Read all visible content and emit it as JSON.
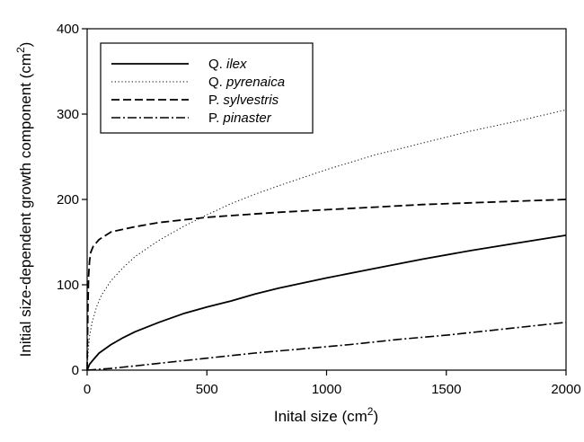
{
  "chart_data": {
    "type": "line",
    "title": "",
    "xlabel": {
      "text": "Inital size (cm",
      "sup": "2",
      "close": ")"
    },
    "ylabel": {
      "text": "Initial size-dependent growth component (cm",
      "sup": "2",
      "close": ")"
    },
    "xlim": [
      0,
      2000
    ],
    "ylim": [
      0,
      400
    ],
    "xticks": [
      0,
      500,
      1000,
      1500,
      2000
    ],
    "yticks": [
      0,
      100,
      200,
      300,
      400
    ],
    "xtick_labels": [
      "0",
      "500",
      "1000",
      "1500",
      "2000"
    ],
    "ytick_labels": [
      "0",
      "100",
      "200",
      "300",
      "400"
    ],
    "grid": false,
    "legend_position": "top-left",
    "series": [
      {
        "id": "qilex",
        "prefix": "Q.",
        "species": "ilex",
        "dash": "solid",
        "color": "#000000",
        "points": [
          [
            0,
            0
          ],
          [
            10,
            7
          ],
          [
            25,
            12
          ],
          [
            50,
            20
          ],
          [
            100,
            30
          ],
          [
            150,
            38
          ],
          [
            200,
            45
          ],
          [
            300,
            56
          ],
          [
            400,
            66
          ],
          [
            500,
            74
          ],
          [
            600,
            81
          ],
          [
            700,
            89
          ],
          [
            800,
            96
          ],
          [
            1000,
            108
          ],
          [
            1200,
            119
          ],
          [
            1400,
            130
          ],
          [
            1600,
            140
          ],
          [
            1800,
            149
          ],
          [
            2000,
            158
          ]
        ]
      },
      {
        "id": "qpyrenaica",
        "prefix": "Q.",
        "species": "pyrenaica",
        "dash": "dotted",
        "color": "#000000",
        "points": [
          [
            0,
            0
          ],
          [
            5,
            25
          ],
          [
            10,
            40
          ],
          [
            20,
            55
          ],
          [
            40,
            75
          ],
          [
            60,
            88
          ],
          [
            100,
            105
          ],
          [
            150,
            120
          ],
          [
            200,
            133
          ],
          [
            300,
            152
          ],
          [
            400,
            168
          ],
          [
            500,
            182
          ],
          [
            600,
            195
          ],
          [
            700,
            206
          ],
          [
            800,
            216
          ],
          [
            1000,
            235
          ],
          [
            1200,
            252
          ],
          [
            1400,
            266
          ],
          [
            1600,
            280
          ],
          [
            1800,
            292
          ],
          [
            2000,
            305
          ]
        ]
      },
      {
        "id": "psylvestris",
        "prefix": "P.",
        "species": "sylvestris",
        "dash": "dashed",
        "color": "#000000",
        "points": [
          [
            0,
            0
          ],
          [
            3,
            70
          ],
          [
            6,
            110
          ],
          [
            10,
            128
          ],
          [
            15,
            138
          ],
          [
            25,
            145
          ],
          [
            50,
            153
          ],
          [
            100,
            162
          ],
          [
            200,
            168
          ],
          [
            300,
            173
          ],
          [
            400,
            176
          ],
          [
            500,
            179
          ],
          [
            600,
            181
          ],
          [
            800,
            185
          ],
          [
            1000,
            188
          ],
          [
            1200,
            191
          ],
          [
            1400,
            194
          ],
          [
            1600,
            196
          ],
          [
            1800,
            198
          ],
          [
            2000,
            200
          ]
        ]
      },
      {
        "id": "ppinaster",
        "prefix": "P.",
        "species": "pinaster",
        "dash": "dashdot",
        "color": "#000000",
        "points": [
          [
            0,
            0
          ],
          [
            100,
            2
          ],
          [
            200,
            5
          ],
          [
            300,
            8
          ],
          [
            400,
            11
          ],
          [
            500,
            14
          ],
          [
            700,
            20
          ],
          [
            900,
            25
          ],
          [
            1100,
            30
          ],
          [
            1300,
            36
          ],
          [
            1500,
            41
          ],
          [
            1700,
            47
          ],
          [
            2000,
            56
          ]
        ]
      }
    ]
  }
}
